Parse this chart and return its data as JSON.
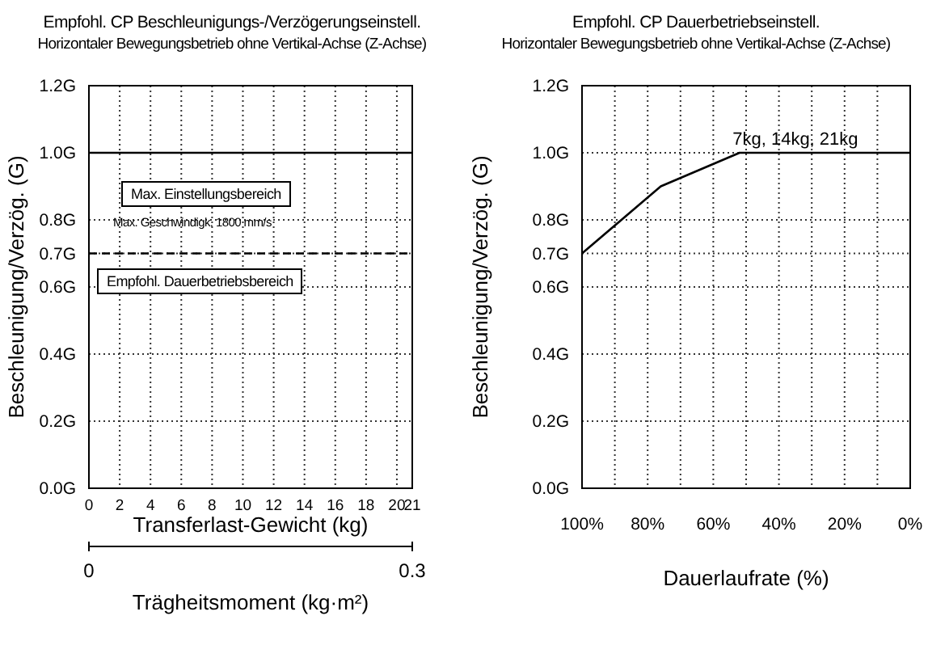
{
  "chart_data": [
    {
      "type": "line",
      "title": "Empfohl. CP Beschleunigungs-/Verzögerungseinstell.",
      "subtitle": "Horizontaler Bewegungsbetrieb ohne Vertikal-Achse (Z-Achse)",
      "xlabel": "Transferlast-Gewicht (kg)",
      "ylabel": "Beschleunigung/Verzög. (G)",
      "x2label": "Trägheitsmoment (kg·m²)",
      "series": [
        {
          "color": "#000000",
          "x": [
            0,
            21
          ],
          "values": [
            1.0,
            1.0
          ],
          "line_style": "solid"
        },
        {
          "color": "#000000",
          "x": [
            0,
            21
          ],
          "values": [
            0.7,
            0.7
          ],
          "line_style": "dashed"
        }
      ],
      "xlim": [
        0,
        21
      ],
      "xticks": [
        0,
        2,
        4,
        6,
        8,
        10,
        12,
        14,
        16,
        18,
        20,
        21
      ],
      "x2lim": [
        0,
        0.3
      ],
      "x2ticks": [
        0,
        0.3
      ],
      "ylim": [
        0,
        1.2
      ],
      "yticks": [
        {
          "value": 0,
          "label": "0.0G"
        },
        {
          "value": 0.2,
          "label": "0.2G"
        },
        {
          "value": 0.4,
          "label": "0.4G"
        },
        {
          "value": 0.6,
          "label": "0.6G"
        },
        {
          "value": 0.7,
          "label": "0.7G"
        },
        {
          "value": 0.8,
          "label": "0.8G"
        },
        {
          "value": 1.0,
          "label": "1.0G"
        },
        {
          "value": 1.2,
          "label": "1.2G"
        }
      ],
      "annotations": [
        "Max. Einstellungsbereich",
        "Max. Geschwindigk. 1800 mm/s",
        "Empfohl. Dauerbetriebsbereich"
      ],
      "grid": true,
      "marker": "none"
    },
    {
      "type": "line",
      "title": "Empfohl. CP Dauerbetriebseinstell.",
      "subtitle": "Horizontaler Bewegungsbetrieb ohne Vertikal-Achse (Z-Achse)",
      "xlabel": "Dauerlaufrate (%)",
      "ylabel": "Beschleunigung/Verzög. (G)",
      "series": [
        {
          "color": "#000000",
          "x": [
            100,
            76,
            52,
            0
          ],
          "values": [
            0.7,
            0.9,
            1.0,
            1.0
          ],
          "line_style": "solid"
        }
      ],
      "xlim": [
        100,
        0
      ],
      "xticks": [
        {
          "value": 100,
          "label": "100%"
        },
        {
          "value": 90,
          "label": null
        },
        {
          "value": 80,
          "label": "80%"
        },
        {
          "value": 70,
          "label": null
        },
        {
          "value": 60,
          "label": "60%"
        },
        {
          "value": 50,
          "label": null
        },
        {
          "value": 40,
          "label": "40%"
        },
        {
          "value": 30,
          "label": null
        },
        {
          "value": 20,
          "label": "20%"
        },
        {
          "value": 10,
          "label": null
        },
        {
          "value": 0,
          "label": "0%"
        }
      ],
      "ylim": [
        0,
        1.2
      ],
      "yticks": [
        {
          "value": 0,
          "label": "0.0G"
        },
        {
          "value": 0.2,
          "label": "0.2G"
        },
        {
          "value": 0.4,
          "label": "0.4G"
        },
        {
          "value": 0.6,
          "label": "0.6G"
        },
        {
          "value": 0.7,
          "label": "0.7G"
        },
        {
          "value": 0.8,
          "label": "0.8G"
        },
        {
          "value": 1.0,
          "label": "1.0G"
        },
        {
          "value": 1.2,
          "label": "1.2G"
        }
      ],
      "annotations": [
        {
          "text": "7kg, 14kg, 21kg",
          "x": 35,
          "y": 1.0
        }
      ],
      "grid": true,
      "marker": "none"
    }
  ]
}
